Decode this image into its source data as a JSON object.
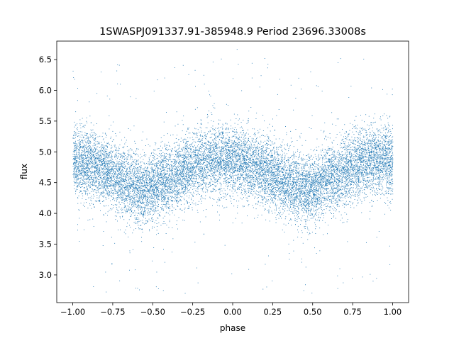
{
  "figure": {
    "background": "#ffffff",
    "axes_background": "#ffffff",
    "spine_color": "#000000"
  },
  "chart_data": {
    "type": "scatter",
    "title": "1SWASPJ091337.91-385948.9 Period 23696.33008s",
    "xlabel": "phase",
    "ylabel": "flux",
    "xlim": [
      -1.1,
      1.1
    ],
    "ylim": [
      2.55,
      6.8
    ],
    "x_ticks": [
      -1.0,
      -0.75,
      -0.5,
      -0.25,
      0.0,
      0.25,
      0.5,
      0.75,
      1.0
    ],
    "x_tick_labels": [
      "−1.00",
      "−0.75",
      "−0.50",
      "−0.25",
      "0.00",
      "0.25",
      "0.50",
      "0.75",
      "1.00"
    ],
    "y_ticks": [
      3.0,
      3.5,
      4.0,
      4.5,
      5.0,
      5.5,
      6.0,
      6.5
    ],
    "y_tick_labels": [
      "3.0",
      "3.5",
      "4.0",
      "4.5",
      "5.0",
      "5.5",
      "6.0",
      "6.5"
    ],
    "grid": false,
    "legend": "none",
    "marker_color": "#1f77b4",
    "series": [
      {
        "phase_range": [
          -1.0,
          1.0
        ],
        "mean_flux_profile": [
          {
            "phase": -1.0,
            "flux": 4.85
          },
          {
            "phase": -0.9,
            "flux": 4.8
          },
          {
            "phase": -0.8,
            "flux": 4.7
          },
          {
            "phase": -0.7,
            "flux": 4.55
          },
          {
            "phase": -0.6,
            "flux": 4.42
          },
          {
            "phase": -0.55,
            "flux": 4.38
          },
          {
            "phase": -0.5,
            "flux": 4.42
          },
          {
            "phase": -0.4,
            "flux": 4.55
          },
          {
            "phase": -0.3,
            "flux": 4.7
          },
          {
            "phase": -0.2,
            "flux": 4.83
          },
          {
            "phase": -0.1,
            "flux": 4.88
          },
          {
            "phase": 0.0,
            "flux": 4.85
          },
          {
            "phase": 0.1,
            "flux": 4.8
          },
          {
            "phase": 0.2,
            "flux": 4.7
          },
          {
            "phase": 0.3,
            "flux": 4.55
          },
          {
            "phase": 0.4,
            "flux": 4.42
          },
          {
            "phase": 0.45,
            "flux": 4.38
          },
          {
            "phase": 0.5,
            "flux": 4.42
          },
          {
            "phase": 0.6,
            "flux": 4.55
          },
          {
            "phase": 0.7,
            "flux": 4.7
          },
          {
            "phase": 0.8,
            "flux": 4.83
          },
          {
            "phase": 0.9,
            "flux": 4.88
          },
          {
            "phase": 1.0,
            "flux": 4.85
          }
        ],
        "scatter_sigma": 0.28,
        "approx_point_count": 14000
      }
    ]
  }
}
